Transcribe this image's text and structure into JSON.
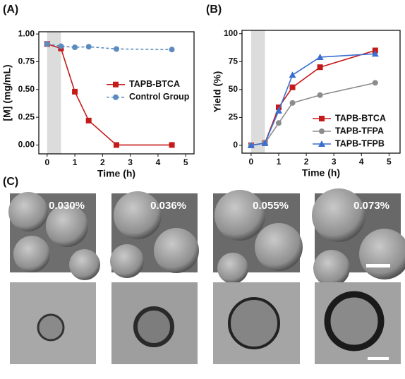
{
  "chart_data": [
    {
      "type": "line",
      "panel_label": "(A)",
      "xlabel": "Time (h)",
      "ylabel": "[M] (mg/mL)",
      "x": [
        0,
        0.5,
        1,
        1.5,
        2.5,
        4.5
      ],
      "series": [
        {
          "name": "TAPB-BTCA",
          "color": "#c41a1a",
          "marker": "square",
          "linestyle": "solid",
          "values": [
            0.91,
            0.87,
            0.48,
            0.22,
            0,
            0
          ]
        },
        {
          "name": "Control Group",
          "color": "#5b8bbf",
          "marker": "circle",
          "linestyle": "dashed",
          "values": [
            0.91,
            0.89,
            0.88,
            0.885,
            0.865,
            0.86
          ]
        }
      ],
      "shaded": [
        0,
        0.5
      ],
      "xlim": [
        -0.3,
        5.3
      ],
      "xticks": [
        0,
        1,
        2,
        3,
        4,
        5
      ],
      "ylim": [
        -0.08,
        1.02
      ],
      "yticks": [
        {
          "value": 0,
          "label": "0.00"
        },
        {
          "value": 0.25,
          "label": "0.25"
        },
        {
          "value": 0.5,
          "label": "0.50"
        },
        {
          "value": 0.75,
          "label": "0.75"
        },
        {
          "value": 1,
          "label": "1.00"
        }
      ],
      "legend": "center right"
    },
    {
      "type": "line",
      "panel_label": "(B)",
      "xlabel": "Time (h)",
      "ylabel": "Yield (%)",
      "x": [
        0,
        0.5,
        1,
        1.5,
        2.5,
        4.5
      ],
      "series": [
        {
          "name": "TAPB-BTCA",
          "color": "#c41a1a",
          "marker": "square",
          "linestyle": "solid",
          "values": [
            0,
            2,
            34,
            52,
            70,
            85
          ]
        },
        {
          "name": "TAPB-TFPA",
          "color": "#8c8c8c",
          "marker": "circle",
          "linestyle": "solid",
          "values": [
            0,
            2,
            20,
            38,
            45,
            56
          ]
        },
        {
          "name": "TAPB-TFPB",
          "color": "#3a6fd0",
          "marker": "triangle",
          "linestyle": "solid",
          "values": [
            0,
            2,
            31,
            63,
            79,
            82
          ]
        }
      ],
      "shaded": [
        0,
        0.5
      ],
      "xlim": [
        -0.33,
        5.4
      ],
      "xticks": [
        0,
        1,
        2,
        3,
        4,
        5
      ],
      "ylim": [
        -7,
        103
      ],
      "yticks": [
        0,
        25,
        50,
        75,
        100
      ],
      "legend": "lower right"
    }
  ],
  "panel_c": {
    "label": "(C)",
    "concentrations": [
      "0.030%",
      "0.036%",
      "0.055%",
      "0.073%"
    ]
  }
}
